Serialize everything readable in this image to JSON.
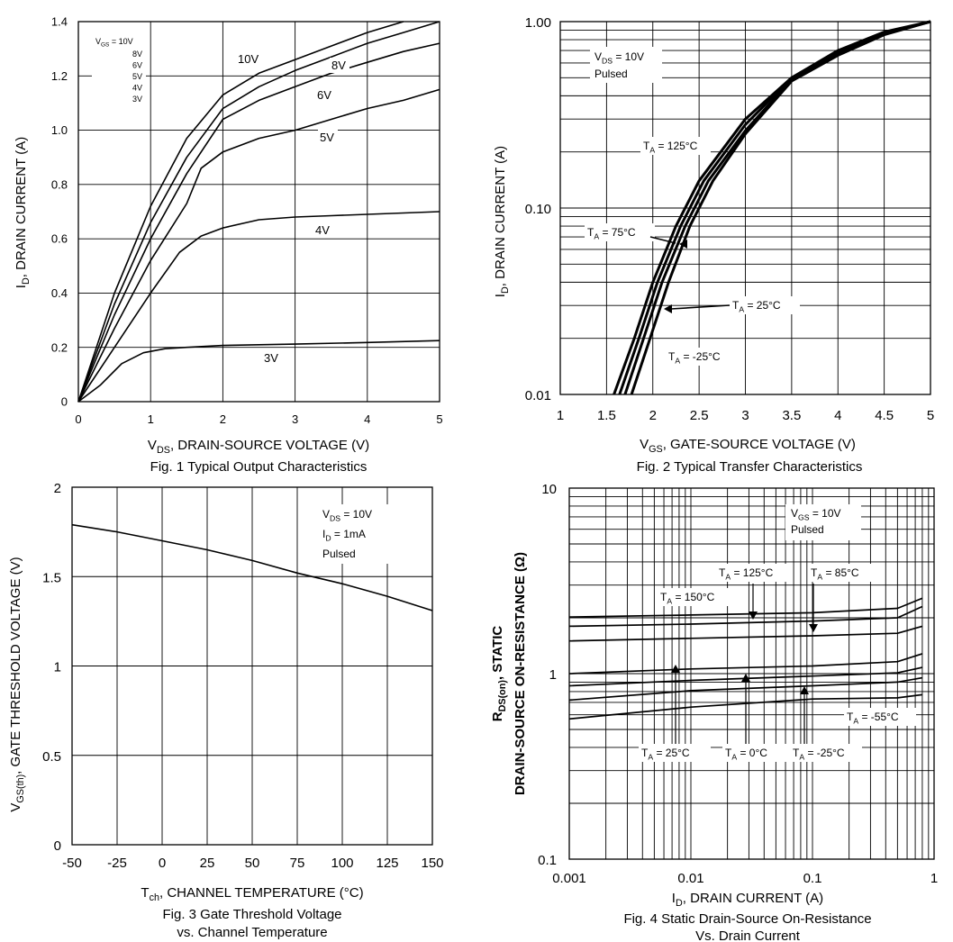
{
  "chart_data": [
    {
      "id": "fig1",
      "type": "line",
      "title": "Fig. 1  Typical Output Characteristics",
      "xlabel": "V_DS, DRAIN-SOURCE VOLTAGE (V)",
      "ylabel": "I_D, DRAIN CURRENT (A)",
      "x_scale": "linear",
      "y_scale": "linear",
      "xlim": [
        0,
        5
      ],
      "ylim": [
        0,
        1.4
      ],
      "x_ticks": [
        0,
        1,
        2,
        3,
        4,
        5
      ],
      "x_tick_labels": [
        "0",
        "1",
        "2",
        "3",
        "4",
        "5"
      ],
      "y_ticks": [
        0,
        0.2,
        0.4,
        0.6,
        0.8,
        1.0,
        1.2,
        1.4
      ],
      "y_tick_labels": [
        "0",
        "0.2",
        "0.4",
        "0.6",
        "0.8",
        "1.0",
        "1.2",
        "1.4"
      ],
      "grid": true,
      "legend_title": "V_GS = 10V",
      "legend_entries": [
        "8V",
        "6V",
        "5V",
        "4V",
        "3V"
      ],
      "series": [
        {
          "name": "10V",
          "points": [
            [
              0,
              0
            ],
            [
              0.5,
              0.4
            ],
            [
              1.0,
              0.72
            ],
            [
              1.5,
              0.97
            ],
            [
              2.0,
              1.13
            ],
            [
              2.5,
              1.21
            ],
            [
              3.0,
              1.26
            ],
            [
              3.5,
              1.31
            ],
            [
              4.0,
              1.36
            ],
            [
              4.5,
              1.4
            ]
          ]
        },
        {
          "name": "8V",
          "points": [
            [
              0,
              0
            ],
            [
              0.5,
              0.36
            ],
            [
              1.0,
              0.66
            ],
            [
              1.5,
              0.9
            ],
            [
              2.0,
              1.08
            ],
            [
              2.5,
              1.16
            ],
            [
              3.0,
              1.22
            ],
            [
              3.5,
              1.27
            ],
            [
              4.0,
              1.32
            ],
            [
              4.5,
              1.36
            ],
            [
              5.0,
              1.4
            ]
          ]
        },
        {
          "name": "6V",
          "points": [
            [
              0,
              0
            ],
            [
              0.5,
              0.32
            ],
            [
              1.0,
              0.6
            ],
            [
              1.5,
              0.84
            ],
            [
              2.0,
              1.04
            ],
            [
              2.5,
              1.11
            ],
            [
              3.0,
              1.16
            ],
            [
              3.5,
              1.21
            ],
            [
              4.0,
              1.25
            ],
            [
              4.5,
              1.29
            ],
            [
              5.0,
              1.32
            ]
          ]
        },
        {
          "name": "5V",
          "points": [
            [
              0,
              0
            ],
            [
              0.5,
              0.27
            ],
            [
              1.0,
              0.52
            ],
            [
              1.5,
              0.73
            ],
            [
              1.7,
              0.86
            ],
            [
              2.0,
              0.92
            ],
            [
              2.5,
              0.97
            ],
            [
              3.0,
              1.0
            ],
            [
              3.5,
              1.04
            ],
            [
              4.0,
              1.08
            ],
            [
              4.5,
              1.11
            ],
            [
              5.0,
              1.15
            ]
          ]
        },
        {
          "name": "4V",
          "points": [
            [
              0,
              0
            ],
            [
              0.5,
              0.2
            ],
            [
              1.0,
              0.4
            ],
            [
              1.4,
              0.55
            ],
            [
              1.7,
              0.61
            ],
            [
              2.0,
              0.64
            ],
            [
              2.5,
              0.67
            ],
            [
              3.0,
              0.68
            ],
            [
              3.5,
              0.685
            ],
            [
              4.0,
              0.69
            ],
            [
              4.5,
              0.695
            ],
            [
              5.0,
              0.7
            ]
          ]
        },
        {
          "name": "3V",
          "points": [
            [
              0,
              0
            ],
            [
              0.3,
              0.06
            ],
            [
              0.6,
              0.14
            ],
            [
              0.9,
              0.18
            ],
            [
              1.2,
              0.195
            ],
            [
              1.5,
              0.2
            ],
            [
              2.0,
              0.207
            ],
            [
              3.0,
              0.212
            ],
            [
              4.0,
              0.218
            ],
            [
              5.0,
              0.225
            ]
          ]
        }
      ],
      "curve_labels": [
        "10V",
        "8V",
        "6V",
        "5V",
        "4V",
        "3V"
      ]
    },
    {
      "id": "fig2",
      "type": "line",
      "title": "Fig. 2  Typical Transfer Characteristics",
      "xlabel": "V_GS, GATE-SOURCE VOLTAGE (V)",
      "ylabel": "I_D, DRAIN CURRENT (A)",
      "x_scale": "linear",
      "y_scale": "log",
      "xlim": [
        1,
        5
      ],
      "ylim": [
        0.01,
        1.0
      ],
      "x_ticks": [
        1,
        1.5,
        2,
        2.5,
        3,
        3.5,
        4,
        4.5,
        5
      ],
      "x_tick_labels": [
        "1",
        "1.5",
        "2",
        "2.5",
        "3",
        "3.5",
        "4",
        "4.5",
        "5"
      ],
      "y_ticks": [
        0.01,
        0.1,
        1.0
      ],
      "y_tick_labels": [
        "0.01",
        "0.10",
        "1.00"
      ],
      "grid": true,
      "notes": [
        "V_DS = 10V",
        "Pulsed"
      ],
      "series": [
        {
          "name": "T_A = 125°C",
          "points": [
            [
              1.58,
              0.01
            ],
            [
              1.8,
              0.02
            ],
            [
              2.0,
              0.04
            ],
            [
              2.25,
              0.08
            ],
            [
              2.5,
              0.14
            ],
            [
              3.0,
              0.3
            ],
            [
              3.5,
              0.5
            ],
            [
              4.0,
              0.7
            ],
            [
              4.5,
              0.88
            ],
            [
              5.0,
              1.0
            ]
          ]
        },
        {
          "name": "T_A = 75°C",
          "points": [
            [
              1.64,
              0.01
            ],
            [
              1.85,
              0.02
            ],
            [
              2.05,
              0.04
            ],
            [
              2.3,
              0.08
            ],
            [
              2.55,
              0.14
            ],
            [
              3.0,
              0.28
            ],
            [
              3.5,
              0.5
            ],
            [
              4.0,
              0.68
            ],
            [
              4.5,
              0.87
            ],
            [
              5.0,
              1.0
            ]
          ]
        },
        {
          "name": "T_A = 25°C",
          "points": [
            [
              1.7,
              0.01
            ],
            [
              1.9,
              0.02
            ],
            [
              2.1,
              0.04
            ],
            [
              2.35,
              0.08
            ],
            [
              2.6,
              0.14
            ],
            [
              3.0,
              0.26
            ],
            [
              3.5,
              0.49
            ],
            [
              4.0,
              0.67
            ],
            [
              4.5,
              0.86
            ],
            [
              5.0,
              1.0
            ]
          ]
        },
        {
          "name": "T_A = -25°C",
          "points": [
            [
              1.77,
              0.01
            ],
            [
              1.97,
              0.02
            ],
            [
              2.17,
              0.04
            ],
            [
              2.4,
              0.08
            ],
            [
              2.65,
              0.14
            ],
            [
              3.0,
              0.25
            ],
            [
              3.5,
              0.48
            ],
            [
              4.0,
              0.66
            ],
            [
              4.5,
              0.85
            ],
            [
              5.0,
              1.0
            ]
          ]
        }
      ],
      "curve_labels": [
        "T_A = 125°C",
        "T_A = 75°C",
        "T_A = 25°C",
        "T_A = -25°C"
      ]
    },
    {
      "id": "fig3",
      "type": "line",
      "title": "Fig. 3  Gate Threshold Voltage",
      "title2": "vs. Channel Temperature",
      "xlabel": "T_ch, CHANNEL TEMPERATURE (°C)",
      "ylabel": "V_GS(th), GATE THRESHOLD VOLTAGE (V)",
      "x_scale": "linear",
      "y_scale": "linear",
      "xlim": [
        -50,
        150
      ],
      "ylim": [
        0,
        2
      ],
      "x_ticks": [
        -50,
        -25,
        0,
        25,
        50,
        75,
        100,
        125,
        150
      ],
      "x_tick_labels": [
        "-50",
        "-25",
        "0",
        "25",
        "50",
        "75",
        "100",
        "125",
        "150"
      ],
      "y_ticks": [
        0,
        0.5,
        1,
        1.5,
        2
      ],
      "y_tick_labels": [
        "0",
        "0.5",
        "1",
        "1.5",
        "2"
      ],
      "grid": true,
      "notes": [
        "V_DS = 10V",
        "I_D = 1mA",
        "Pulsed"
      ],
      "series": [
        {
          "name": "V_GS(th)",
          "points": [
            [
              -50,
              1.79
            ],
            [
              -25,
              1.75
            ],
            [
              0,
              1.7
            ],
            [
              25,
              1.65
            ],
            [
              50,
              1.59
            ],
            [
              75,
              1.52
            ],
            [
              100,
              1.46
            ],
            [
              125,
              1.39
            ],
            [
              150,
              1.31
            ]
          ]
        }
      ]
    },
    {
      "id": "fig4",
      "type": "line",
      "title": "Fig. 4 Static Drain-Source On-Resistance",
      "title2": "Vs. Drain Current",
      "xlabel": "I_D, DRAIN CURRENT (A)",
      "ylabel_line1": "R_DS(on), STATIC",
      "ylabel_line2": "DRAIN-SOURCE ON-RESISTANCE (Ω)",
      "x_scale": "log",
      "y_scale": "log",
      "xlim": [
        0.001,
        1
      ],
      "ylim": [
        0.1,
        10
      ],
      "x_ticks": [
        0.001,
        0.01,
        0.1,
        1
      ],
      "x_tick_labels": [
        "0.001",
        "0.01",
        "0.1",
        "1"
      ],
      "y_ticks": [
        0.1,
        1,
        10
      ],
      "y_tick_labels": [
        "0.1",
        "1",
        "10"
      ],
      "grid": true,
      "notes": [
        "V_GS = 10V",
        "Pulsed"
      ],
      "series": [
        {
          "name": "T_A = 150°C",
          "points": [
            [
              0.001,
              2.02
            ],
            [
              0.01,
              2.07
            ],
            [
              0.1,
              2.13
            ],
            [
              0.5,
              2.25
            ],
            [
              0.8,
              2.55
            ]
          ]
        },
        {
          "name": "T_A = 125°C",
          "points": [
            [
              0.001,
              1.8
            ],
            [
              0.01,
              1.85
            ],
            [
              0.1,
              1.92
            ],
            [
              0.5,
              2.0
            ],
            [
              0.8,
              2.3
            ]
          ]
        },
        {
          "name": "T_A = 85°C",
          "points": [
            [
              0.001,
              1.5
            ],
            [
              0.01,
              1.55
            ],
            [
              0.1,
              1.6
            ],
            [
              0.5,
              1.65
            ],
            [
              0.8,
              1.8
            ]
          ]
        },
        {
          "name": "T_A = 25°C",
          "points": [
            [
              0.001,
              1.0
            ],
            [
              0.01,
              1.06
            ],
            [
              0.1,
              1.1
            ],
            [
              0.5,
              1.16
            ],
            [
              0.8,
              1.28
            ]
          ]
        },
        {
          "name": "T_A = 0°C",
          "points": [
            [
              0.001,
              0.86
            ],
            [
              0.01,
              0.92
            ],
            [
              0.1,
              0.97
            ],
            [
              0.5,
              1.01
            ],
            [
              0.8,
              1.08
            ]
          ]
        },
        {
          "name": "T_A = -25°C",
          "points": [
            [
              0.001,
              0.72
            ],
            [
              0.01,
              0.81
            ],
            [
              0.1,
              0.86
            ],
            [
              0.5,
              0.9
            ],
            [
              0.8,
              0.95
            ]
          ]
        },
        {
          "name": "T_A = -55°C",
          "points": [
            [
              0.001,
              0.57
            ],
            [
              0.01,
              0.66
            ],
            [
              0.1,
              0.73
            ],
            [
              0.5,
              0.74
            ],
            [
              0.8,
              0.77
            ]
          ]
        }
      ],
      "curve_labels": [
        "T_A = 150°C",
        "T_A = 125°C",
        "T_A = 85°C",
        "T_A = 25°C",
        "T_A = 0°C",
        "T_A = -25°C",
        "T_A = -55°C"
      ]
    }
  ]
}
